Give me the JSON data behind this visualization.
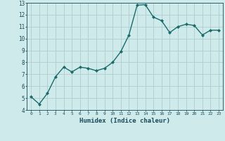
{
  "x": [
    0,
    1,
    2,
    3,
    4,
    5,
    6,
    7,
    8,
    9,
    10,
    11,
    12,
    13,
    14,
    15,
    16,
    17,
    18,
    19,
    20,
    21,
    22,
    23
  ],
  "y": [
    5.1,
    4.5,
    5.4,
    6.8,
    7.6,
    7.2,
    7.6,
    7.5,
    7.3,
    7.5,
    8.0,
    8.9,
    10.3,
    12.8,
    12.85,
    11.8,
    11.5,
    10.5,
    11.0,
    11.2,
    11.1,
    10.3,
    10.7,
    10.7
  ],
  "xlabel": "Humidex (Indice chaleur)",
  "ylim": [
    4,
    13
  ],
  "xlim": [
    -0.5,
    23.5
  ],
  "yticks": [
    4,
    5,
    6,
    7,
    8,
    9,
    10,
    11,
    12,
    13
  ],
  "xticks": [
    0,
    1,
    2,
    3,
    4,
    5,
    6,
    7,
    8,
    9,
    10,
    11,
    12,
    13,
    14,
    15,
    16,
    17,
    18,
    19,
    20,
    21,
    22,
    23
  ],
  "line_color": "#1a6b6b",
  "marker": "D",
  "marker_size": 2.0,
  "bg_color": "#ceeaea",
  "grid_color": "#b0cccc",
  "tick_color": "#1a4a5a",
  "line_width": 1.0
}
